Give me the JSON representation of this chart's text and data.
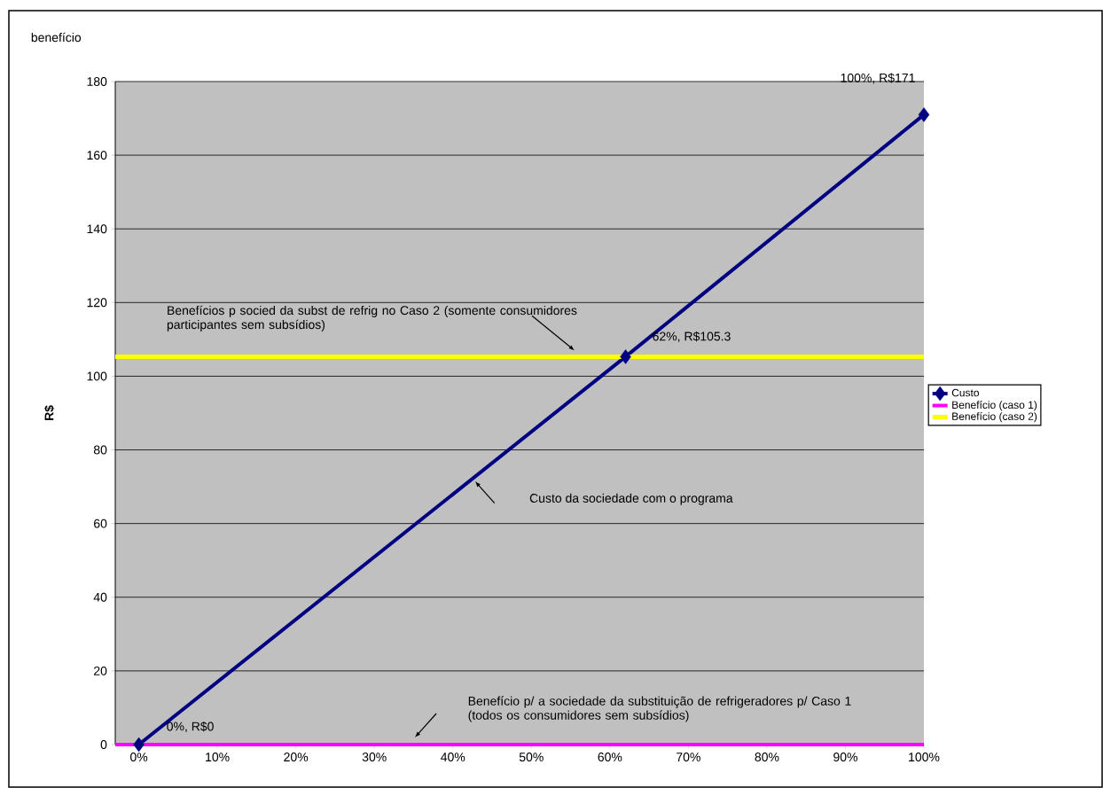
{
  "chart_data": {
    "type": "line",
    "title": "benefício",
    "ylabel": "R$",
    "xlim": [
      -3,
      100
    ],
    "ylim": [
      0,
      180
    ],
    "xticks": [
      {
        "value": 0,
        "label": "0%"
      },
      {
        "value": 10,
        "label": "10%"
      },
      {
        "value": 20,
        "label": "20%"
      },
      {
        "value": 30,
        "label": "30%"
      },
      {
        "value": 40,
        "label": "40%"
      },
      {
        "value": 50,
        "label": "50%"
      },
      {
        "value": 60,
        "label": "60%"
      },
      {
        "value": 70,
        "label": "70%"
      },
      {
        "value": 80,
        "label": "80%"
      },
      {
        "value": 90,
        "label": "90%"
      },
      {
        "value": 100,
        "label": "100%"
      }
    ],
    "yticks": [
      0,
      20,
      40,
      60,
      80,
      100,
      120,
      140,
      160,
      180
    ],
    "grid": "y",
    "legend": "right",
    "line_style": "solid",
    "series": [
      {
        "name": "Custo",
        "color": "#000080",
        "x": [
          0,
          62,
          100
        ],
        "values": [
          0,
          105.3,
          171
        ],
        "marker": "diamond"
      },
      {
        "name": "Benefício (caso 1)",
        "color": "#ff00ff",
        "x": [
          -3,
          100
        ],
        "values": [
          0,
          0
        ],
        "marker": "none"
      },
      {
        "name": "Benefício (caso 2)",
        "color": "#ffff00",
        "x": [
          -3,
          100
        ],
        "values": [
          105.3,
          105.3
        ],
        "marker": "none"
      }
    ],
    "annotations": [
      {
        "text": "100%, R$171",
        "x": 100,
        "y": 171
      },
      "62%, R$105.3",
      {
        "text": "0%, R$0",
        "x": 0,
        "y": 0
      },
      {
        "text": "Benefícios p socied da subst de refrig no Caso 2 (somente consumidores participantes sem subsídios)",
        "x": 55.5,
        "y": 107
      },
      "Custo da sociedade com o programa",
      "Benefício p/ a sociedade da substituição de refrigeradores p/ Caso 1 (todos os consumidores sem subsídios)"
    ]
  }
}
